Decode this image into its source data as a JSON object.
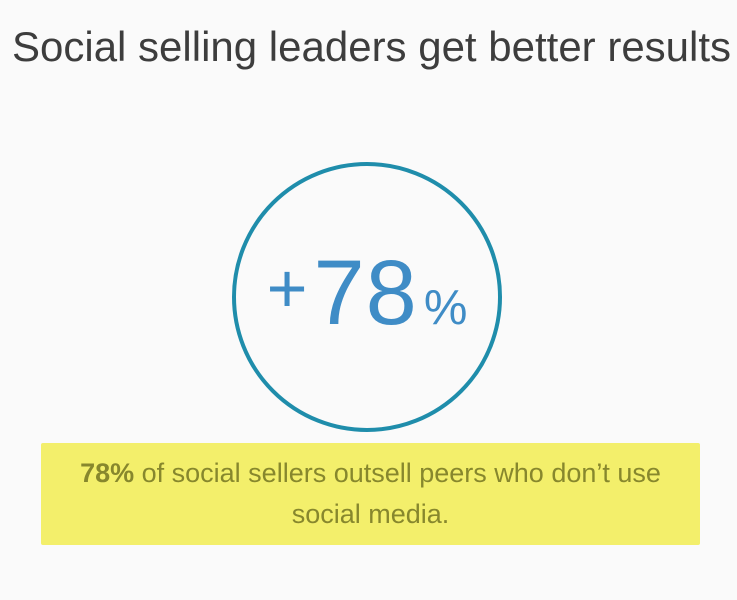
{
  "colors": {
    "background": "#fafafa",
    "title_text": "#3d3d3d",
    "circle_border": "#1f8dab",
    "stat_text": "#3f8cc6",
    "highlight_bg": "#f3ef6b",
    "highlight_text": "#87872d"
  },
  "header": {
    "title": "Social selling leaders get better results"
  },
  "stat_circle": {
    "plus": "+",
    "value": "78",
    "percent": "%"
  },
  "caption": {
    "bold_prefix": "78%",
    "rest": " of social sellers outsell peers who don’t use social media."
  },
  "chart_data": {
    "type": "kpi",
    "title": "Social selling leaders get better results",
    "value": 78,
    "unit": "%",
    "value_display": "+78%",
    "annotation": "78% of social sellers outsell peers who don’t use social media.",
    "layout_hints": {
      "value_in_circle": true,
      "circle_color": "#1f8dab",
      "annotation_highlighted": true,
      "highlight_color": "#f3ef6b"
    }
  }
}
